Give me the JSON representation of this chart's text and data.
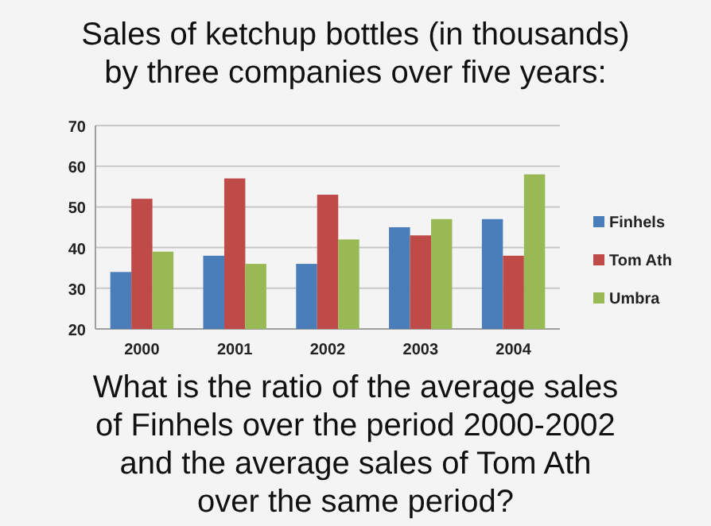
{
  "chart_data": {
    "type": "bar",
    "title": "Sales of ketchup bottles (in thousands)\nby three companies over five years:",
    "categories": [
      "2000",
      "2001",
      "2002",
      "2003",
      "2004"
    ],
    "series": [
      {
        "name": "Finhels",
        "color": "#4a7ebb",
        "values": [
          34,
          38,
          36,
          45,
          47
        ]
      },
      {
        "name": "Tom Ath",
        "color": "#be4b48",
        "values": [
          52,
          57,
          53,
          43,
          38
        ]
      },
      {
        "name": "Umbra",
        "color": "#98b954",
        "values": [
          39,
          36,
          42,
          47,
          58
        ]
      }
    ],
    "ylim": [
      20,
      70
    ],
    "yticks": [
      20,
      30,
      40,
      50,
      60,
      70
    ],
    "grid": "y",
    "legend": "right",
    "annotations": [
      "What is the ratio of the average sales\nof Finhels over the period 2000-2002\nand the average sales of Tom Ath\nover the same period?"
    ]
  }
}
